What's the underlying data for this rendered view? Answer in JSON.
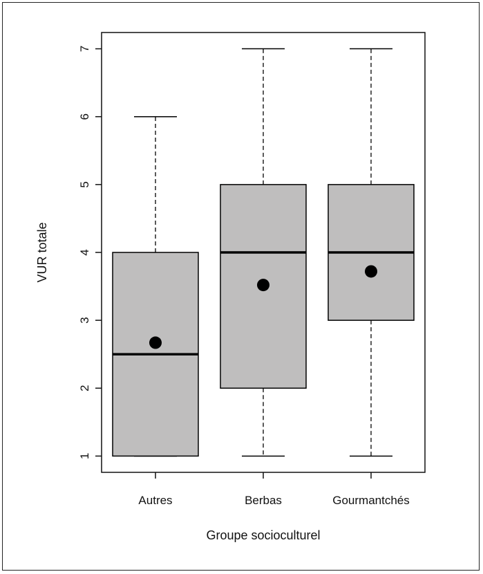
{
  "chart_data": {
    "type": "boxplot",
    "xlabel": "Groupe socioculturel",
    "ylabel": "VUR totale",
    "ylim": [
      0.76,
      7.24
    ],
    "yticks": [
      1,
      2,
      3,
      4,
      5,
      6,
      7
    ],
    "categories": [
      "Autres",
      "Berbas",
      "Gourmantchés"
    ],
    "boxes": [
      {
        "category": "Autres",
        "whisker_low": 1,
        "q1": 1,
        "median": 2.5,
        "q3": 4,
        "whisker_high": 6,
        "mean": 2.67
      },
      {
        "category": "Berbas",
        "whisker_low": 1,
        "q1": 2,
        "median": 4,
        "q3": 5,
        "whisker_high": 7,
        "mean": 3.52
      },
      {
        "category": "Gourmantchés",
        "whisker_low": 1,
        "q1": 3,
        "median": 4,
        "q3": 5,
        "whisker_high": 7,
        "mean": 3.72
      }
    ],
    "colors": {
      "box_fill": "#bfbebe",
      "stroke": "#000000",
      "mean_marker": "#000000"
    },
    "grid": false,
    "legend": "none"
  }
}
